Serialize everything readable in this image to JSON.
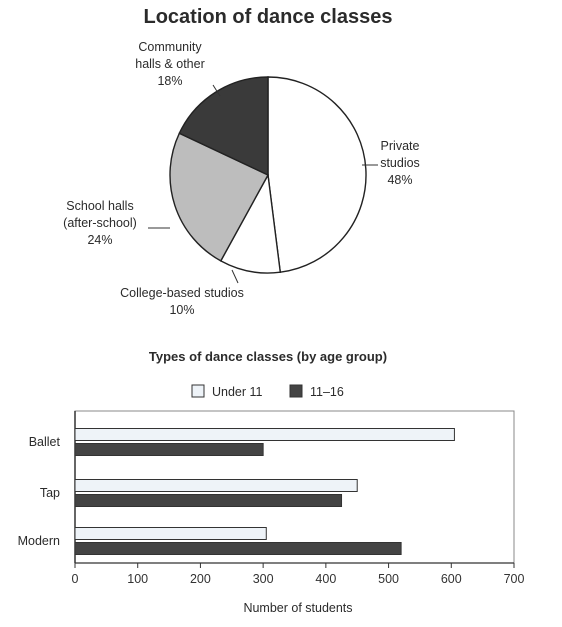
{
  "chart_data": [
    {
      "type": "pie",
      "title": "Location of dance classes",
      "slices": [
        {
          "label_lines": [
            "Private",
            "studios"
          ],
          "value": 48,
          "value_label": "48%",
          "color": "#ffffff"
        },
        {
          "label_lines": [
            "College-based studios"
          ],
          "value": 10,
          "value_label": "10%",
          "color": "#ffffff"
        },
        {
          "label_lines": [
            "School halls",
            "(after-school)"
          ],
          "value": 24,
          "value_label": "24%",
          "color": "#bdbdbd"
        },
        {
          "label_lines": [
            "Community",
            "halls & other"
          ],
          "value": 18,
          "value_label": "18%",
          "color": "#3a3a3a"
        }
      ]
    },
    {
      "type": "bar",
      "orientation": "horizontal",
      "title": "Types of dance classes (by age group)",
      "categories": [
        "Ballet",
        "Tap",
        "Modern"
      ],
      "series": [
        {
          "name": "Under 11",
          "values": [
            605,
            450,
            305
          ],
          "color": "#eef3f8"
        },
        {
          "name": "11–16",
          "values": [
            300,
            425,
            520
          ],
          "color": "#444444"
        }
      ],
      "xlabel": "Number of students",
      "ylabel": "",
      "xlim": [
        0,
        700
      ],
      "xticks": [
        "0",
        "100",
        "200",
        "300",
        "400",
        "500",
        "600",
        "700"
      ],
      "legend": "top"
    }
  ]
}
